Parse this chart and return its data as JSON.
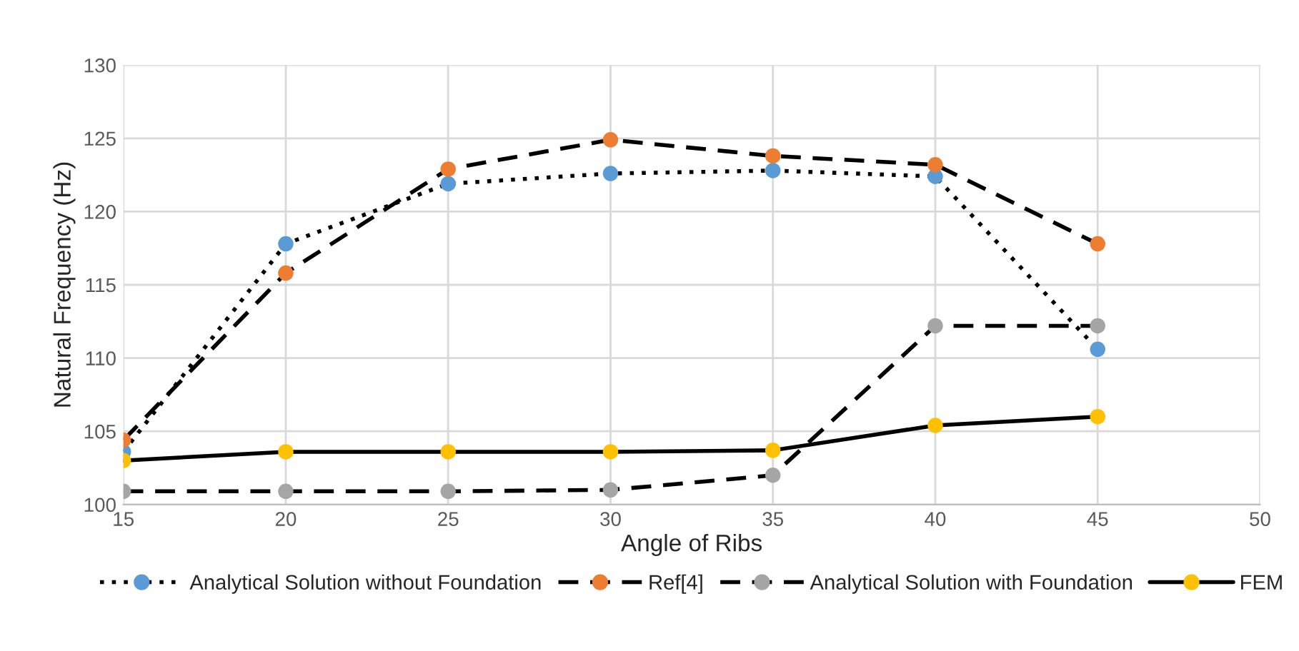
{
  "chart_data": {
    "type": "line",
    "xlabel": "Angle of Ribs",
    "ylabel": "Natural Frequency (Hz)",
    "x": [
      15,
      20,
      25,
      30,
      35,
      40,
      45
    ],
    "series": [
      {
        "name": "Analytical Solution without Foundation",
        "color": "#5b9bd5",
        "line_style": "dotted",
        "values": [
          103.6,
          117.8,
          121.9,
          122.6,
          122.8,
          122.4,
          110.6
        ]
      },
      {
        "name": "Ref[4]",
        "color": "#ed7d31",
        "line_style": "dashed",
        "values": [
          104.4,
          115.8,
          122.9,
          124.9,
          123.8,
          123.2,
          117.8
        ]
      },
      {
        "name": "Analytical Solution with Foundation",
        "color": "#a5a5a5",
        "line_style": "dashed",
        "values": [
          100.9,
          100.9,
          100.9,
          101.0,
          102.0,
          112.2,
          112.2
        ]
      },
      {
        "name": "FEM",
        "color": "#ffc000",
        "line_style": "solid",
        "values": [
          103.0,
          103.6,
          103.6,
          103.6,
          103.7,
          105.4,
          106.0
        ]
      }
    ],
    "xlim": [
      15,
      50
    ],
    "xticks": [
      15,
      20,
      25,
      30,
      35,
      40,
      45,
      50
    ],
    "ylim": [
      100,
      130
    ],
    "yticks": [
      100,
      105,
      110,
      115,
      120,
      125,
      130
    ],
    "grid": true,
    "legend": "bottom",
    "marker": "circle"
  }
}
